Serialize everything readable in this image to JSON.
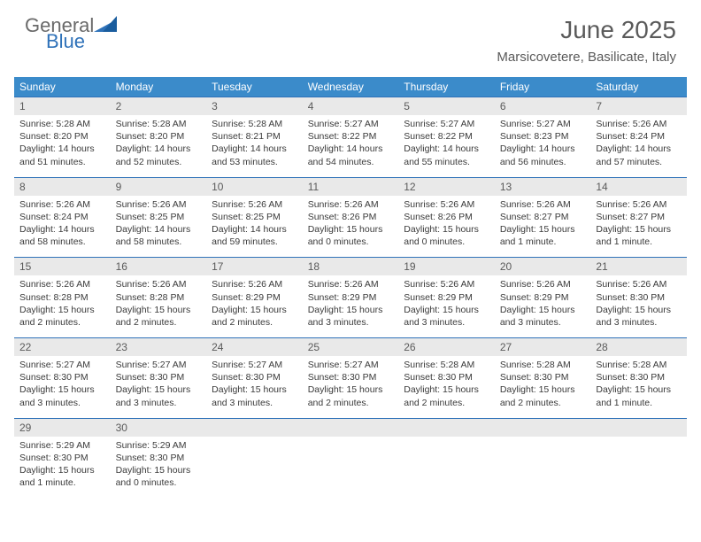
{
  "brand": {
    "part1": "General",
    "part2": "Blue"
  },
  "title": "June 2025",
  "location": "Marsicovetere, Basilicate, Italy",
  "colors": {
    "header_bg": "#3b8bca",
    "header_text": "#ffffff",
    "daynum_bg": "#e9e9e9",
    "border": "#2f72b9",
    "text": "#3a3a3a",
    "title_text": "#5a5a5a"
  },
  "day_headers": [
    "Sunday",
    "Monday",
    "Tuesday",
    "Wednesday",
    "Thursday",
    "Friday",
    "Saturday"
  ],
  "weeks": [
    [
      {
        "n": "1",
        "sunrise": "5:28 AM",
        "sunset": "8:20 PM",
        "daylight": "14 hours and 51 minutes."
      },
      {
        "n": "2",
        "sunrise": "5:28 AM",
        "sunset": "8:20 PM",
        "daylight": "14 hours and 52 minutes."
      },
      {
        "n": "3",
        "sunrise": "5:28 AM",
        "sunset": "8:21 PM",
        "daylight": "14 hours and 53 minutes."
      },
      {
        "n": "4",
        "sunrise": "5:27 AM",
        "sunset": "8:22 PM",
        "daylight": "14 hours and 54 minutes."
      },
      {
        "n": "5",
        "sunrise": "5:27 AM",
        "sunset": "8:22 PM",
        "daylight": "14 hours and 55 minutes."
      },
      {
        "n": "6",
        "sunrise": "5:27 AM",
        "sunset": "8:23 PM",
        "daylight": "14 hours and 56 minutes."
      },
      {
        "n": "7",
        "sunrise": "5:26 AM",
        "sunset": "8:24 PM",
        "daylight": "14 hours and 57 minutes."
      }
    ],
    [
      {
        "n": "8",
        "sunrise": "5:26 AM",
        "sunset": "8:24 PM",
        "daylight": "14 hours and 58 minutes."
      },
      {
        "n": "9",
        "sunrise": "5:26 AM",
        "sunset": "8:25 PM",
        "daylight": "14 hours and 58 minutes."
      },
      {
        "n": "10",
        "sunrise": "5:26 AM",
        "sunset": "8:25 PM",
        "daylight": "14 hours and 59 minutes."
      },
      {
        "n": "11",
        "sunrise": "5:26 AM",
        "sunset": "8:26 PM",
        "daylight": "15 hours and 0 minutes."
      },
      {
        "n": "12",
        "sunrise": "5:26 AM",
        "sunset": "8:26 PM",
        "daylight": "15 hours and 0 minutes."
      },
      {
        "n": "13",
        "sunrise": "5:26 AM",
        "sunset": "8:27 PM",
        "daylight": "15 hours and 1 minute."
      },
      {
        "n": "14",
        "sunrise": "5:26 AM",
        "sunset": "8:27 PM",
        "daylight": "15 hours and 1 minute."
      }
    ],
    [
      {
        "n": "15",
        "sunrise": "5:26 AM",
        "sunset": "8:28 PM",
        "daylight": "15 hours and 2 minutes."
      },
      {
        "n": "16",
        "sunrise": "5:26 AM",
        "sunset": "8:28 PM",
        "daylight": "15 hours and 2 minutes."
      },
      {
        "n": "17",
        "sunrise": "5:26 AM",
        "sunset": "8:29 PM",
        "daylight": "15 hours and 2 minutes."
      },
      {
        "n": "18",
        "sunrise": "5:26 AM",
        "sunset": "8:29 PM",
        "daylight": "15 hours and 3 minutes."
      },
      {
        "n": "19",
        "sunrise": "5:26 AM",
        "sunset": "8:29 PM",
        "daylight": "15 hours and 3 minutes."
      },
      {
        "n": "20",
        "sunrise": "5:26 AM",
        "sunset": "8:29 PM",
        "daylight": "15 hours and 3 minutes."
      },
      {
        "n": "21",
        "sunrise": "5:26 AM",
        "sunset": "8:30 PM",
        "daylight": "15 hours and 3 minutes."
      }
    ],
    [
      {
        "n": "22",
        "sunrise": "5:27 AM",
        "sunset": "8:30 PM",
        "daylight": "15 hours and 3 minutes."
      },
      {
        "n": "23",
        "sunrise": "5:27 AM",
        "sunset": "8:30 PM",
        "daylight": "15 hours and 3 minutes."
      },
      {
        "n": "24",
        "sunrise": "5:27 AM",
        "sunset": "8:30 PM",
        "daylight": "15 hours and 3 minutes."
      },
      {
        "n": "25",
        "sunrise": "5:27 AM",
        "sunset": "8:30 PM",
        "daylight": "15 hours and 2 minutes."
      },
      {
        "n": "26",
        "sunrise": "5:28 AM",
        "sunset": "8:30 PM",
        "daylight": "15 hours and 2 minutes."
      },
      {
        "n": "27",
        "sunrise": "5:28 AM",
        "sunset": "8:30 PM",
        "daylight": "15 hours and 2 minutes."
      },
      {
        "n": "28",
        "sunrise": "5:28 AM",
        "sunset": "8:30 PM",
        "daylight": "15 hours and 1 minute."
      }
    ],
    [
      {
        "n": "29",
        "sunrise": "5:29 AM",
        "sunset": "8:30 PM",
        "daylight": "15 hours and 1 minute."
      },
      {
        "n": "30",
        "sunrise": "5:29 AM",
        "sunset": "8:30 PM",
        "daylight": "15 hours and 0 minutes."
      },
      null,
      null,
      null,
      null,
      null
    ]
  ],
  "labels": {
    "sunrise": "Sunrise:",
    "sunset": "Sunset:",
    "daylight": "Daylight:"
  }
}
